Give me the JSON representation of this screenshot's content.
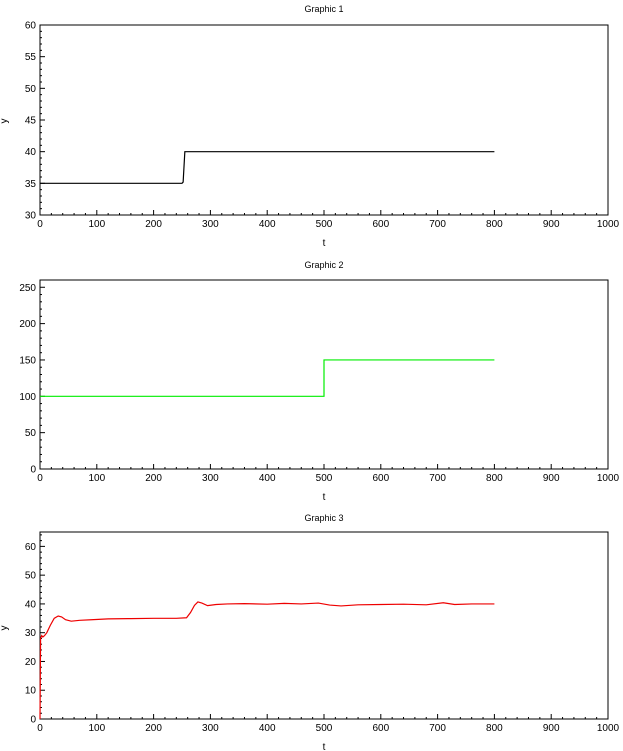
{
  "chart_data": [
    {
      "type": "line",
      "title": "Graphic 1",
      "xlabel": "t",
      "ylabel": "y",
      "xlim": [
        0,
        1000
      ],
      "ylim": [
        30,
        60
      ],
      "xticks": [
        0,
        100,
        200,
        300,
        400,
        500,
        600,
        700,
        800,
        900,
        1000
      ],
      "yticks": [
        30,
        35,
        40,
        45,
        50,
        55,
        60
      ],
      "grid": false,
      "series": [
        {
          "color": "#000000",
          "x": [
            0,
            250,
            252,
            252.5,
            255,
            800
          ],
          "y": [
            35,
            35,
            35.2,
            36,
            40,
            40
          ]
        }
      ]
    },
    {
      "type": "line",
      "title": "Graphic 2",
      "xlabel": "t",
      "ylabel": "",
      "xlim": [
        0,
        1000
      ],
      "ylim": [
        0,
        260
      ],
      "xticks": [
        0,
        100,
        200,
        300,
        400,
        500,
        600,
        700,
        800,
        900,
        1000
      ],
      "yticks": [
        0,
        50,
        100,
        150,
        200,
        250
      ],
      "grid": false,
      "series": [
        {
          "color": "#00ee00",
          "x": [
            0,
            500,
            500,
            800
          ],
          "y": [
            100,
            100,
            150,
            150
          ]
        }
      ]
    },
    {
      "type": "line",
      "title": "Graphic 3",
      "xlabel": "t",
      "ylabel": "y",
      "xlim": [
        0,
        1000
      ],
      "ylim": [
        0,
        65
      ],
      "xticks": [
        0,
        100,
        200,
        300,
        400,
        500,
        600,
        700,
        800,
        900,
        1000
      ],
      "yticks": [
        0,
        10,
        20,
        30,
        40,
        50,
        60
      ],
      "grid": false,
      "series": [
        {
          "color": "#ee0000",
          "x": [
            0,
            1,
            2,
            3,
            5,
            8,
            12,
            18,
            25,
            32,
            38,
            45,
            55,
            70,
            90,
            120,
            160,
            200,
            240,
            258,
            265,
            272,
            278,
            285,
            295,
            310,
            330,
            360,
            400,
            430,
            460,
            490,
            510,
            530,
            560,
            600,
            640,
            680,
            710,
            730,
            760,
            800
          ],
          "y": [
            0,
            28,
            28.5,
            29,
            28.5,
            29,
            30,
            32.5,
            35,
            35.8,
            35.5,
            34.5,
            34,
            34.3,
            34.5,
            34.8,
            34.9,
            35,
            35,
            35.2,
            37,
            39.5,
            40.7,
            40.3,
            39.4,
            39.8,
            40,
            40.1,
            39.9,
            40.2,
            40,
            40.3,
            39.6,
            39.3,
            39.7,
            39.8,
            39.9,
            39.7,
            40.4,
            39.8,
            40,
            40
          ]
        }
      ]
    }
  ]
}
